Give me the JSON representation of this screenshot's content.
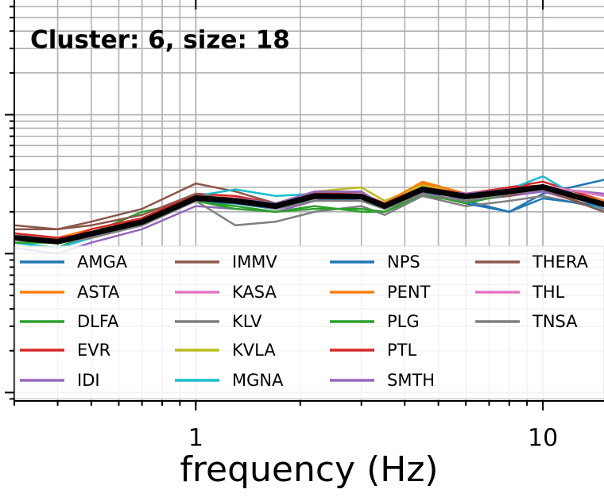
{
  "chart_data": {
    "type": "line",
    "title": "Cluster: 6, size: 18",
    "x_label": "frequency (Hz)",
    "x": [
      0.3,
      0.4,
      0.5,
      0.7,
      1,
      1.3,
      1.7,
      2.2,
      3,
      3.5,
      4.5,
      6,
      8,
      10,
      15
    ],
    "xlim": [
      0.3,
      15
    ],
    "xticks": [
      1,
      10
    ],
    "ylim": [
      0.0087,
      6.7
    ],
    "xlog": true,
    "ylog": true,
    "grid": true,
    "series": [
      {
        "name": "AMGA",
        "color": "#1f77b4",
        "values": [
          0.12,
          0.11,
          0.13,
          0.16,
          0.24,
          0.23,
          0.21,
          0.25,
          0.26,
          0.22,
          0.3,
          0.24,
          0.2,
          0.27,
          0.34
        ]
      },
      {
        "name": "ASTA",
        "color": "#ff7f0e",
        "values": [
          0.14,
          0.13,
          0.15,
          0.18,
          0.26,
          0.25,
          0.23,
          0.27,
          0.27,
          0.23,
          0.32,
          0.27,
          0.29,
          0.31,
          0.23
        ]
      },
      {
        "name": "DLFA",
        "color": "#2ca02c",
        "values": [
          0.12,
          0.11,
          0.14,
          0.2,
          0.24,
          0.22,
          0.2,
          0.22,
          0.2,
          0.2,
          0.26,
          0.24,
          0.27,
          0.29,
          0.24
        ]
      },
      {
        "name": "EVR",
        "color": "#d62728",
        "values": [
          0.13,
          0.12,
          0.15,
          0.18,
          0.27,
          0.26,
          0.23,
          0.27,
          0.26,
          0.22,
          0.31,
          0.26,
          0.3,
          0.33,
          0.24
        ]
      },
      {
        "name": "IDI",
        "color": "#9467bd",
        "values": [
          0.11,
          0.1,
          0.12,
          0.15,
          0.22,
          0.21,
          0.2,
          0.24,
          0.25,
          0.21,
          0.27,
          0.24,
          0.26,
          0.28,
          0.21
        ]
      },
      {
        "name": "IMMV",
        "color": "#8c564b",
        "values": [
          0.16,
          0.15,
          0.17,
          0.21,
          0.32,
          0.28,
          0.23,
          0.27,
          0.27,
          0.23,
          0.3,
          0.26,
          0.26,
          0.3,
          0.2
        ]
      },
      {
        "name": "KASA",
        "color": "#e377c2",
        "values": [
          0.13,
          0.12,
          0.14,
          0.17,
          0.25,
          0.24,
          0.22,
          0.26,
          0.26,
          0.22,
          0.28,
          0.25,
          0.28,
          0.31,
          0.22
        ]
      },
      {
        "name": "KLV",
        "color": "#7f7f7f",
        "values": [
          0.14,
          0.12,
          0.13,
          0.16,
          0.24,
          0.16,
          0.17,
          0.2,
          0.22,
          0.19,
          0.26,
          0.22,
          0.24,
          0.26,
          0.21
        ]
      },
      {
        "name": "KVLA",
        "color": "#bcbd22",
        "values": [
          0.12,
          0.12,
          0.13,
          0.16,
          0.25,
          0.25,
          0.23,
          0.28,
          0.3,
          0.24,
          0.31,
          0.27,
          0.29,
          0.31,
          0.23
        ]
      },
      {
        "name": "MGNA",
        "color": "#17becf",
        "values": [
          0.12,
          0.11,
          0.13,
          0.16,
          0.26,
          0.29,
          0.26,
          0.27,
          0.27,
          0.22,
          0.3,
          0.26,
          0.29,
          0.36,
          0.2
        ]
      },
      {
        "name": "NPS",
        "color": "#1f77b4",
        "values": [
          0.13,
          0.12,
          0.13,
          0.17,
          0.24,
          0.23,
          0.22,
          0.25,
          0.24,
          0.21,
          0.28,
          0.23,
          0.2,
          0.25,
          0.22
        ]
      },
      {
        "name": "PENT",
        "color": "#ff7f0e",
        "values": [
          0.13,
          0.12,
          0.14,
          0.17,
          0.25,
          0.24,
          0.23,
          0.26,
          0.26,
          0.23,
          0.33,
          0.27,
          0.28,
          0.3,
          0.24
        ]
      },
      {
        "name": "PLG",
        "color": "#2ca02c",
        "values": [
          0.12,
          0.12,
          0.13,
          0.16,
          0.24,
          0.21,
          0.2,
          0.21,
          0.21,
          0.2,
          0.27,
          0.23,
          0.27,
          0.29,
          0.23
        ]
      },
      {
        "name": "PTL",
        "color": "#d62728",
        "values": [
          0.14,
          0.13,
          0.14,
          0.18,
          0.26,
          0.25,
          0.23,
          0.27,
          0.27,
          0.23,
          0.3,
          0.27,
          0.3,
          0.31,
          0.23
        ]
      },
      {
        "name": "SMTH",
        "color": "#9467bd",
        "values": [
          0.13,
          0.12,
          0.13,
          0.16,
          0.24,
          0.25,
          0.23,
          0.28,
          0.28,
          0.22,
          0.29,
          0.27,
          0.29,
          0.3,
          0.27
        ]
      },
      {
        "name": "THERA",
        "color": "#8c564b",
        "values": [
          0.15,
          0.15,
          0.16,
          0.19,
          0.27,
          0.24,
          0.22,
          0.25,
          0.25,
          0.21,
          0.28,
          0.26,
          0.27,
          0.29,
          0.2
        ]
      },
      {
        "name": "THL",
        "color": "#e377c2",
        "values": [
          0.13,
          0.12,
          0.13,
          0.16,
          0.25,
          0.25,
          0.22,
          0.26,
          0.27,
          0.22,
          0.29,
          0.26,
          0.28,
          0.31,
          0.26
        ]
      },
      {
        "name": "TNSA",
        "color": "#7f7f7f",
        "values": [
          0.13,
          0.12,
          0.13,
          0.16,
          0.24,
          0.24,
          0.21,
          0.24,
          0.24,
          0.21,
          0.27,
          0.24,
          0.27,
          0.29,
          0.22
        ]
      },
      {
        "color": "#000000",
        "values": [
          0.13,
          0.122,
          0.139,
          0.169,
          0.251,
          0.24,
          0.22,
          0.26,
          0.258,
          0.22,
          0.29,
          0.258,
          0.28,
          0.302,
          0.226
        ]
      }
    ]
  }
}
